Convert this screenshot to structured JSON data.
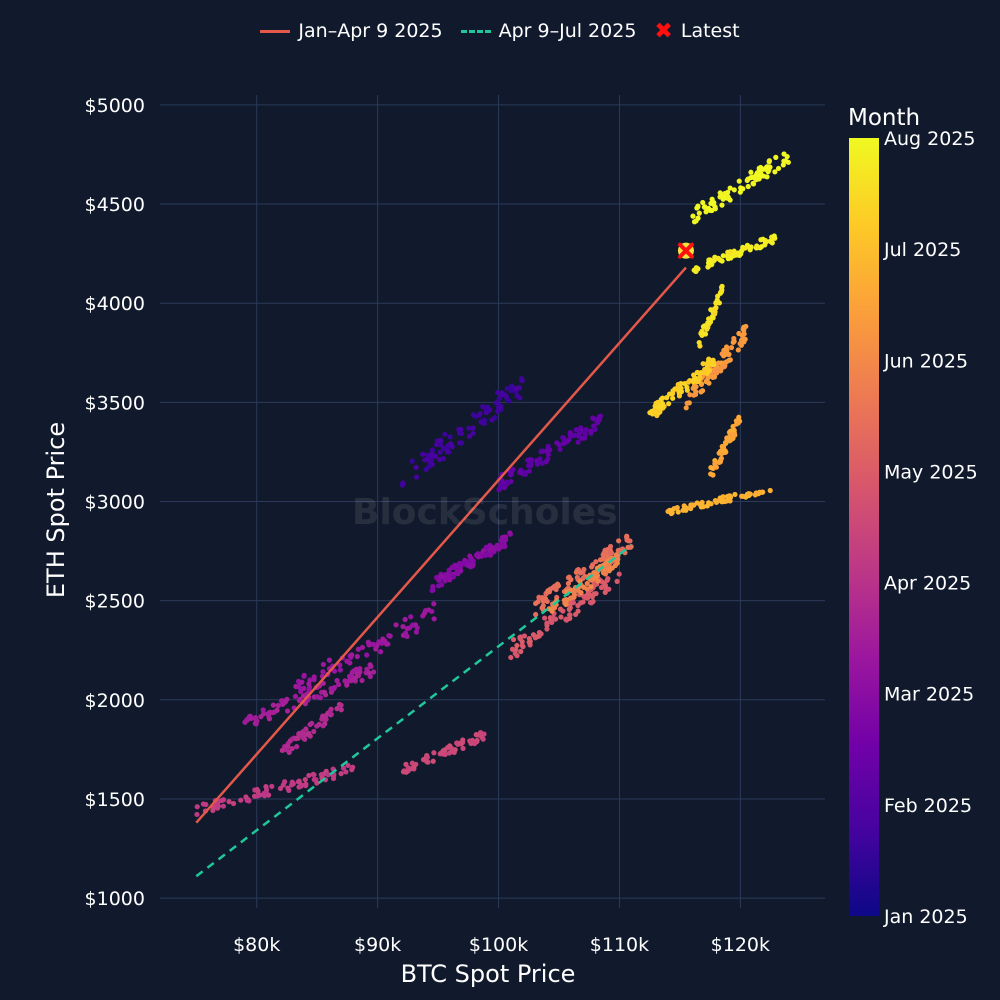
{
  "legend": {
    "series1": "Jan–Apr 9 2025",
    "series2": "Apr 9–Jul 2025",
    "latest": "Latest"
  },
  "watermark": "BlockScholes",
  "chart_data": {
    "type": "scatter",
    "xlabel": "BTC Spot Price",
    "ylabel": "ETH Spot Price",
    "xlim": [
      72000,
      127000
    ],
    "ylim": [
      950,
      5050
    ],
    "x_ticks": [
      80000,
      90000,
      100000,
      110000,
      120000
    ],
    "x_tick_labels": [
      "$80k",
      "$90k",
      "$100k",
      "$110k",
      "$120k"
    ],
    "y_ticks": [
      1000,
      1500,
      2000,
      2500,
      3000,
      3500,
      4000,
      4500,
      5000
    ],
    "y_tick_labels": [
      "$1000",
      "$1500",
      "$2000",
      "$2500",
      "$3000",
      "$3500",
      "$4000",
      "$4500",
      "$5000"
    ],
    "grid": true,
    "colorbar": {
      "title": "Month",
      "labels": [
        "Aug 2025",
        "Jul 2025",
        "Jun 2025",
        "May 2025",
        "Apr 2025",
        "Mar 2025",
        "Feb 2025",
        "Jan 2025"
      ],
      "colors": [
        "#0d0887",
        "#46039f",
        "#7201a8",
        "#9c179e",
        "#bd3786",
        "#d8576b",
        "#ed7953",
        "#fb9f3a",
        "#fdca26",
        "#f0f921"
      ]
    },
    "fit_lines": [
      {
        "name": "Jan–Apr 9 2025",
        "color": "#e4584a",
        "dash": "solid",
        "x": [
          75000,
          115500
        ],
        "y": [
          1380,
          4180
        ]
      },
      {
        "name": "Apr 9–Jul 2025",
        "color": "#1fc79a",
        "dash": "dashed",
        "x": [
          75000,
          111000
        ],
        "y": [
          1110,
          2780
        ]
      }
    ],
    "latest": {
      "x": 115500,
      "y": 4265,
      "color": "#ff1010"
    },
    "clusters": [
      {
        "m": 0.1,
        "x": [
          92000,
          102000
        ],
        "y": [
          3050,
          3650
        ],
        "n": 90
      },
      {
        "m": 0.18,
        "x": [
          100000,
          108500
        ],
        "y": [
          3050,
          3450
        ],
        "n": 90
      },
      {
        "m": 0.28,
        "x": [
          94500,
          101000
        ],
        "y": [
          2550,
          2850
        ],
        "n": 90
      },
      {
        "m": 0.33,
        "x": [
          83000,
          95000
        ],
        "y": [
          2000,
          2500
        ],
        "n": 70
      },
      {
        "m": 0.36,
        "x": [
          79000,
          90000
        ],
        "y": [
          1850,
          2200
        ],
        "n": 90
      },
      {
        "m": 0.4,
        "x": [
          82000,
          87000
        ],
        "y": [
          1700,
          2000
        ],
        "n": 50
      },
      {
        "m": 0.46,
        "x": [
          75000,
          88000
        ],
        "y": [
          1420,
          1680
        ],
        "n": 80
      },
      {
        "m": 0.5,
        "x": [
          92000,
          99000
        ],
        "y": [
          1620,
          1850
        ],
        "n": 60
      },
      {
        "m": 0.56,
        "x": [
          101000,
          110000
        ],
        "y": [
          2200,
          2680
        ],
        "n": 90
      },
      {
        "m": 0.63,
        "x": [
          103000,
          111000
        ],
        "y": [
          2420,
          2850
        ],
        "n": 90
      },
      {
        "m": 0.7,
        "x": [
          104000,
          110000
        ],
        "y": [
          2400,
          2750
        ],
        "n": 80
      },
      {
        "m": 0.76,
        "x": [
          115500,
          120500
        ],
        "y": [
          3450,
          3900
        ],
        "n": 80
      },
      {
        "m": 0.8,
        "x": [
          117500,
          120000
        ],
        "y": [
          3100,
          3450
        ],
        "n": 50
      },
      {
        "m": 0.83,
        "x": [
          114000,
          122500
        ],
        "y": [
          2930,
          3080
        ],
        "n": 60
      },
      {
        "m": 0.9,
        "x": [
          112500,
          118000
        ],
        "y": [
          3400,
          3750
        ],
        "n": 80
      },
      {
        "m": 0.94,
        "x": [
          116500,
          118500
        ],
        "y": [
          3750,
          4100
        ],
        "n": 40
      },
      {
        "m": 0.97,
        "x": [
          116000,
          123000
        ],
        "y": [
          4150,
          4350
        ],
        "n": 60
      },
      {
        "m": 1.0,
        "x": [
          116000,
          124000
        ],
        "y": [
          4400,
          4780
        ],
        "n": 80
      }
    ]
  }
}
